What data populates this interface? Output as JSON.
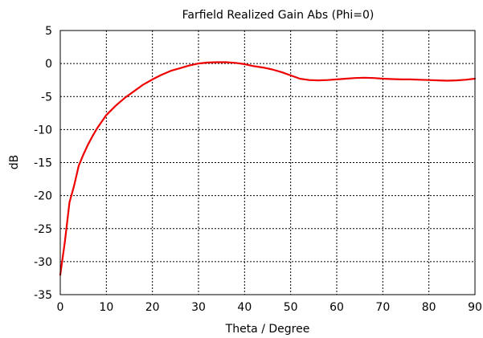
{
  "chart_data": {
    "type": "line",
    "title": "Farfield Realized Gain Abs (Phi=0)",
    "xlabel": "Theta / Degree",
    "ylabel": "dB",
    "xlim": [
      0,
      90
    ],
    "ylim": [
      -35,
      5
    ],
    "xticks": [
      0,
      10,
      20,
      30,
      40,
      50,
      60,
      70,
      80,
      90
    ],
    "yticks": [
      5,
      0,
      -5,
      -10,
      -15,
      -20,
      -25,
      -30,
      -35
    ],
    "grid": true,
    "series": [
      {
        "color": "#ee0000",
        "x": [
          0,
          1,
          2,
          3,
          4,
          5,
          6,
          7,
          8,
          9,
          10,
          12,
          14,
          16,
          18,
          20,
          22,
          24,
          26,
          28,
          30,
          32,
          34,
          36,
          38,
          40,
          42,
          44,
          46,
          48,
          50,
          52,
          54,
          56,
          58,
          60,
          62,
          64,
          66,
          68,
          70,
          72,
          74,
          76,
          78,
          80,
          82,
          84,
          86,
          88,
          90
        ],
        "y": [
          -32,
          -27,
          -21,
          -18.5,
          -15.5,
          -13.8,
          -12.3,
          -11,
          -9.8,
          -8.8,
          -7.8,
          -6.4,
          -5.2,
          -4.2,
          -3.2,
          -2.4,
          -1.7,
          -1.1,
          -0.7,
          -0.3,
          0,
          0.15,
          0.2,
          0.2,
          0.1,
          -0.1,
          -0.4,
          -0.6,
          -0.9,
          -1.3,
          -1.8,
          -2.3,
          -2.5,
          -2.55,
          -2.5,
          -2.4,
          -2.3,
          -2.2,
          -2.15,
          -2.2,
          -2.3,
          -2.35,
          -2.4,
          -2.4,
          -2.45,
          -2.5,
          -2.55,
          -2.6,
          -2.55,
          -2.45,
          -2.3
        ]
      }
    ]
  }
}
